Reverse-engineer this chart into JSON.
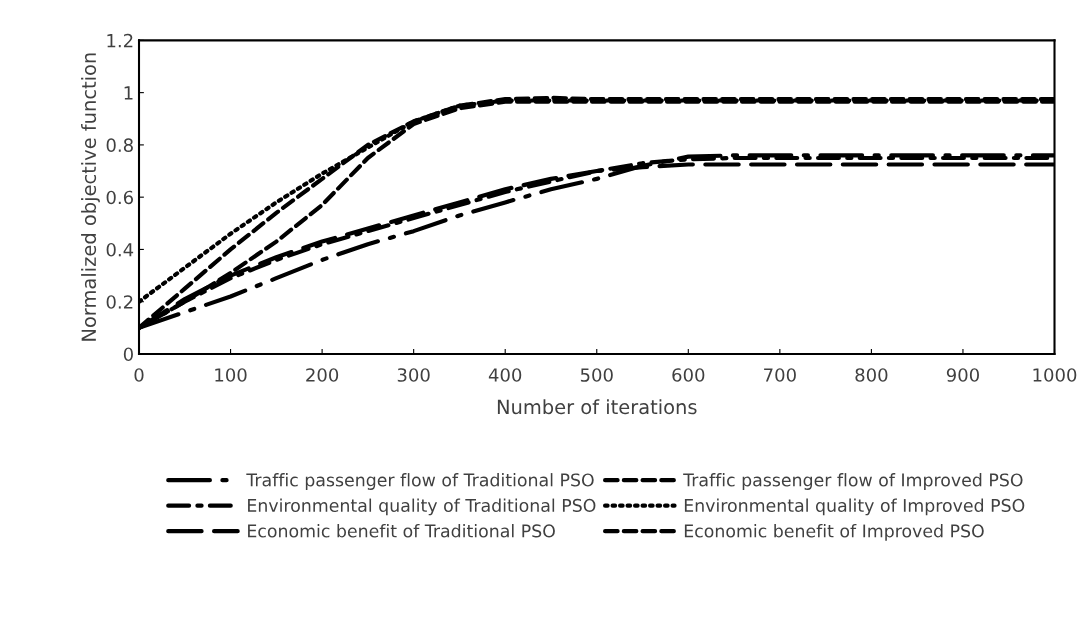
{
  "chart_data": {
    "type": "line",
    "xlabel": "Number of iterations",
    "ylabel": "Normalized objective function",
    "x": [
      0,
      50,
      100,
      150,
      200,
      250,
      300,
      350,
      400,
      450,
      500,
      550,
      600,
      650,
      700,
      800,
      900,
      1000
    ],
    "series": [
      {
        "name": "Traffic passenger flow of Traditional PSO",
        "color": "#000000",
        "line_style": "longdashdot",
        "values": [
          0.1,
          0.16,
          0.22,
          0.29,
          0.36,
          0.42,
          0.47,
          0.53,
          0.58,
          0.63,
          0.67,
          0.72,
          0.755,
          0.76,
          0.76,
          0.76,
          0.76,
          0.76
        ]
      },
      {
        "name": "Traffic passenger flow of Improved PSO",
        "color": "#000000",
        "line_style": "dashed",
        "values": [
          0.1,
          0.25,
          0.4,
          0.54,
          0.67,
          0.8,
          0.89,
          0.95,
          0.975,
          0.98,
          0.975,
          0.975,
          0.975,
          0.975,
          0.975,
          0.975,
          0.975,
          0.975
        ]
      },
      {
        "name": "Environmental quality of Traditional PSO",
        "color": "#000000",
        "line_style": "dashdot",
        "values": [
          0.1,
          0.2,
          0.29,
          0.36,
          0.42,
          0.47,
          0.52,
          0.57,
          0.62,
          0.66,
          0.7,
          0.73,
          0.745,
          0.75,
          0.75,
          0.75,
          0.75,
          0.75
        ]
      },
      {
        "name": "Environmental quality of Improved PSO",
        "color": "#000000",
        "line_style": "dotted",
        "values": [
          0.2,
          0.33,
          0.46,
          0.58,
          0.69,
          0.79,
          0.89,
          0.95,
          0.97,
          0.97,
          0.97,
          0.97,
          0.97,
          0.97,
          0.97,
          0.97,
          0.97,
          0.97
        ]
      },
      {
        "name": "Economic benefit of Traditional PSO",
        "color": "#000000",
        "line_style": "longdash",
        "values": [
          0.1,
          0.21,
          0.3,
          0.37,
          0.43,
          0.48,
          0.53,
          0.58,
          0.63,
          0.67,
          0.7,
          0.715,
          0.725,
          0.725,
          0.725,
          0.725,
          0.725,
          0.725
        ]
      },
      {
        "name": "Economic benefit of Improved PSO",
        "color": "#000000",
        "line_style": "dashed",
        "values": [
          0.1,
          0.2,
          0.31,
          0.43,
          0.57,
          0.75,
          0.88,
          0.94,
          0.965,
          0.965,
          0.965,
          0.965,
          0.965,
          0.965,
          0.965,
          0.965,
          0.965,
          0.965
        ]
      }
    ],
    "xlim": [
      0,
      1000
    ],
    "xticks": [
      0,
      100,
      200,
      300,
      400,
      500,
      600,
      700,
      800,
      900,
      1000
    ],
    "ylim": [
      0,
      1.2
    ],
    "yticks": [
      0,
      0.2,
      0.4,
      0.6,
      0.8,
      1,
      1.2
    ],
    "grid": false,
    "legend": "bottom",
    "marker": "none"
  }
}
